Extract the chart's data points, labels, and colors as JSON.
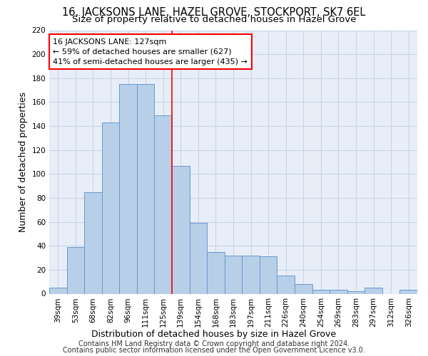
{
  "title": "16, JACKSONS LANE, HAZEL GROVE, STOCKPORT, SK7 6EL",
  "subtitle": "Size of property relative to detached houses in Hazel Grove",
  "xlabel": "Distribution of detached houses by size in Hazel Grove",
  "ylabel": "Number of detached properties",
  "footer_line1": "Contains HM Land Registry data © Crown copyright and database right 2024.",
  "footer_line2": "Contains public sector information licensed under the Open Government Licence v3.0.",
  "categories": [
    "39sqm",
    "53sqm",
    "68sqm",
    "82sqm",
    "96sqm",
    "111sqm",
    "125sqm",
    "139sqm",
    "154sqm",
    "168sqm",
    "183sqm",
    "197sqm",
    "211sqm",
    "226sqm",
    "240sqm",
    "254sqm",
    "269sqm",
    "283sqm",
    "297sqm",
    "312sqm",
    "326sqm"
  ],
  "values": [
    5,
    39,
    85,
    143,
    175,
    175,
    149,
    107,
    59,
    35,
    32,
    32,
    31,
    15,
    8,
    3,
    3,
    2,
    5,
    0,
    3
  ],
  "bar_color": "#b8cfe8",
  "bar_edge_color": "#6699cc",
  "grid_color": "#c8d4e8",
  "background_color": "#e8eef8",
  "annotation_line1": "16 JACKSONS LANE: 127sqm",
  "annotation_line2": "← 59% of detached houses are smaller (627)",
  "annotation_line3": "41% of semi-detached houses are larger (435) →",
  "marker_bar_index": 6,
  "ylim": [
    0,
    220
  ],
  "yticks": [
    0,
    20,
    40,
    60,
    80,
    100,
    120,
    140,
    160,
    180,
    200,
    220
  ],
  "title_fontsize": 10.5,
  "subtitle_fontsize": 9.5,
  "axis_label_fontsize": 9,
  "tick_fontsize": 7.5,
  "annotation_fontsize": 8,
  "footer_fontsize": 7
}
